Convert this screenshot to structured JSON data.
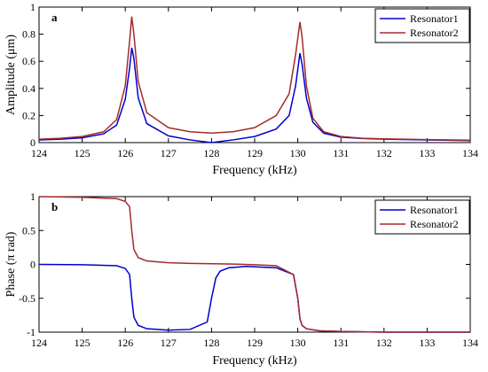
{
  "chart_data": [
    {
      "type": "line",
      "panel_label": "a",
      "xlabel": "Frequency (kHz)",
      "ylabel": "Amplitude (μm)",
      "xlim": [
        124,
        134
      ],
      "ylim": [
        0,
        1
      ],
      "x_ticks": [
        124,
        125,
        126,
        127,
        128,
        129,
        130,
        131,
        132,
        133,
        134
      ],
      "y_ticks": [
        0,
        0.2,
        0.4,
        0.6,
        0.8,
        1
      ],
      "y_tick_labels": [
        "0",
        "0.2",
        "0.4",
        "0.6",
        "0.8",
        "1"
      ],
      "legend_position": "top-right",
      "series": [
        {
          "name": "Resonator1",
          "color": "#0000cc",
          "x": [
            124,
            124.5,
            125,
            125.5,
            125.8,
            126.0,
            126.1,
            126.15,
            126.2,
            126.3,
            126.5,
            127.0,
            127.5,
            128.0,
            128.5,
            129.0,
            129.5,
            129.8,
            129.95,
            130.05,
            130.1,
            130.2,
            130.35,
            130.6,
            131.0,
            131.5,
            132,
            133,
            134
          ],
          "y": [
            0.02,
            0.025,
            0.035,
            0.065,
            0.13,
            0.32,
            0.55,
            0.7,
            0.62,
            0.33,
            0.14,
            0.05,
            0.02,
            0.0,
            0.02,
            0.045,
            0.1,
            0.2,
            0.42,
            0.66,
            0.58,
            0.33,
            0.15,
            0.07,
            0.04,
            0.03,
            0.025,
            0.02,
            0.015
          ]
        },
        {
          "name": "Resonator2",
          "color": "#a52a2a",
          "x": [
            124,
            124.5,
            125,
            125.5,
            125.8,
            126.0,
            126.1,
            126.15,
            126.2,
            126.3,
            126.5,
            127.0,
            127.5,
            128.0,
            128.5,
            129.0,
            129.5,
            129.8,
            129.95,
            130.05,
            130.1,
            130.2,
            130.35,
            130.6,
            131.0,
            131.5,
            132,
            133,
            134
          ],
          "y": [
            0.025,
            0.032,
            0.045,
            0.08,
            0.17,
            0.42,
            0.75,
            0.93,
            0.8,
            0.45,
            0.22,
            0.11,
            0.08,
            0.07,
            0.08,
            0.11,
            0.2,
            0.36,
            0.65,
            0.89,
            0.78,
            0.42,
            0.18,
            0.08,
            0.045,
            0.032,
            0.028,
            0.022,
            0.018
          ]
        }
      ]
    },
    {
      "type": "line",
      "panel_label": "b",
      "xlabel": "Frequency (kHz)",
      "ylabel": "Phase (π rad)",
      "xlim": [
        124,
        134
      ],
      "ylim": [
        -1,
        1
      ],
      "x_ticks": [
        124,
        125,
        126,
        127,
        128,
        129,
        130,
        131,
        132,
        133,
        134
      ],
      "y_ticks": [
        -1,
        -0.5,
        0,
        0.5,
        1
      ],
      "y_tick_labels": [
        "-1",
        "-0.5",
        "0",
        "0.5",
        "1"
      ],
      "legend_position": "top-right",
      "series": [
        {
          "name": "Resonator1",
          "color": "#0000cc",
          "x": [
            124,
            125,
            125.8,
            126.0,
            126.1,
            126.15,
            126.2,
            126.3,
            126.5,
            127.0,
            127.5,
            127.9,
            128.0,
            128.1,
            128.2,
            128.4,
            128.8,
            129.5,
            129.9,
            130.0,
            130.05,
            130.1,
            130.2,
            130.5,
            131.0,
            132,
            133,
            134
          ],
          "y": [
            0,
            -0.005,
            -0.02,
            -0.06,
            -0.15,
            -0.5,
            -0.78,
            -0.9,
            -0.95,
            -0.97,
            -0.96,
            -0.85,
            -0.5,
            -0.2,
            -0.1,
            -0.05,
            -0.03,
            -0.05,
            -0.15,
            -0.5,
            -0.8,
            -0.9,
            -0.95,
            -0.98,
            -0.99,
            -1.0,
            -1.0,
            -1.0
          ]
        },
        {
          "name": "Resonator2",
          "color": "#a52a2a",
          "x": [
            124,
            125,
            125.8,
            126.0,
            126.1,
            126.15,
            126.2,
            126.3,
            126.5,
            127.0,
            127.5,
            128.0,
            128.5,
            129.0,
            129.5,
            129.9,
            130.0,
            130.05,
            130.1,
            130.2,
            130.5,
            131.0,
            132,
            133,
            134
          ],
          "y": [
            1.0,
            0.99,
            0.97,
            0.93,
            0.85,
            0.5,
            0.22,
            0.1,
            0.05,
            0.025,
            0.015,
            0.01,
            0.005,
            -0.005,
            -0.02,
            -0.15,
            -0.5,
            -0.8,
            -0.9,
            -0.95,
            -0.98,
            -0.99,
            -1.0,
            -1.0,
            -1.0
          ]
        }
      ]
    }
  ]
}
